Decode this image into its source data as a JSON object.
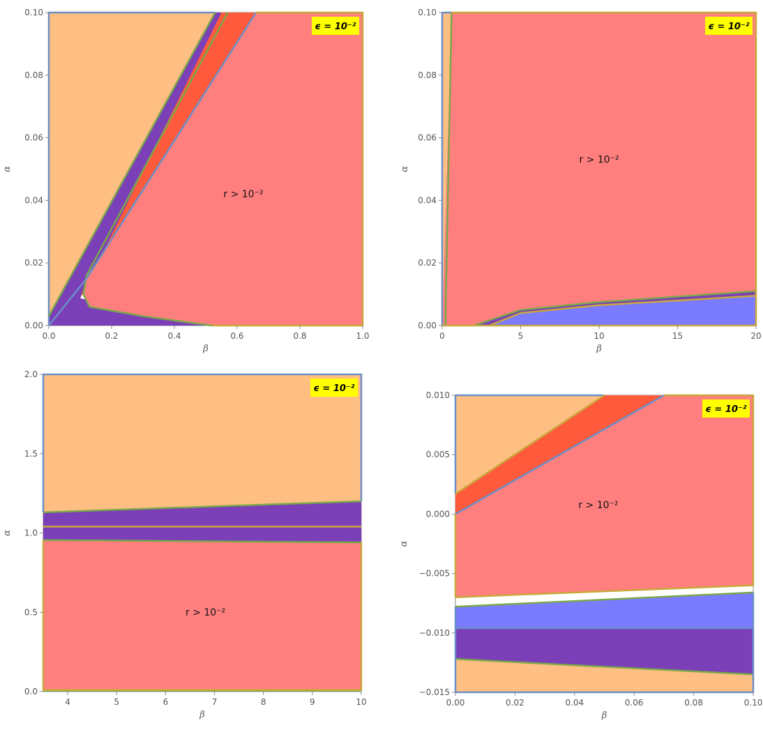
{
  "chart_data": [
    {
      "type": "area",
      "panel": "top-left",
      "xlabel": "β",
      "ylabel": "α",
      "xlim": [
        0,
        1.0
      ],
      "ylim": [
        0,
        0.1
      ],
      "x_ticks": [
        "0.0",
        "0.2",
        "0.4",
        "0.6",
        "0.8",
        "1.0"
      ],
      "y_ticks": [
        "0.00",
        "0.02",
        "0.04",
        "0.06",
        "0.08",
        "0.10"
      ],
      "annotation": "r > 10⁻²",
      "badge": "ϵ = 10⁻²",
      "colors": {
        "orange": "#FFBE82",
        "red": "#FF7F7F",
        "darkred": "#FF5A3C",
        "purple": "#7B3FB8",
        "blue": "#7B7BFF"
      },
      "regions": [
        {
          "color": "orange",
          "points": [
            [
              0,
              0.1
            ],
            [
              0.53,
              0.1
            ],
            [
              0,
              0.003
            ]
          ]
        },
        {
          "color": "purple",
          "points": [
            [
              0,
              0.003
            ],
            [
              0.53,
              0.1
            ],
            [
              0.57,
              0.1
            ],
            [
              0.1,
              0.0087
            ],
            [
              0.52,
              0
            ],
            [
              0,
              0
            ]
          ]
        },
        {
          "color": "darkred",
          "points": [
            [
              0.55,
              0.1
            ],
            [
              0.66,
              0.1
            ],
            [
              0.111,
              0.012
            ],
            [
              0.1,
              0.0087
            ]
          ]
        },
        {
          "color": "red",
          "points": [
            [
              0.66,
              0.1
            ],
            [
              1.0,
              0.1
            ],
            [
              1.0,
              0
            ],
            [
              0.52,
              0
            ],
            [
              0.25,
              0.004
            ],
            [
              0.13,
              0.006
            ],
            [
              0.11,
              0.01
            ],
            [
              0.12,
              0.015
            ]
          ]
        }
      ],
      "boundaries": [
        {
          "color": "#6B8FC7",
          "points": [
            [
              0,
              0
            ],
            [
              0,
              0.1
            ],
            [
              0.53,
              0.1
            ]
          ]
        },
        {
          "color": "#7AA84A",
          "points": [
            [
              0,
              0.003
            ],
            [
              0.53,
              0.1
            ]
          ]
        },
        {
          "color": "#7AA84A",
          "points": [
            [
              0.57,
              0.1
            ],
            [
              0.12,
              0.016
            ],
            [
              0.11,
              0.01
            ],
            [
              0.13,
              0.006
            ],
            [
              0.3,
              0.003
            ],
            [
              0.52,
              0
            ]
          ]
        },
        {
          "color": "#6B8FC7",
          "points": [
            [
              0.66,
              0.1
            ],
            [
              0.12,
              0.015
            ],
            [
              0,
              0
            ]
          ]
        },
        {
          "color": "#C9A83A",
          "points": [
            [
              0.66,
              0.1
            ],
            [
              1.0,
              0.1
            ],
            [
              1.0,
              0
            ],
            [
              0.52,
              0
            ]
          ]
        }
      ]
    },
    {
      "type": "area",
      "panel": "top-right",
      "xlabel": "β",
      "ylabel": "α",
      "xlim": [
        0,
        20
      ],
      "ylim": [
        0,
        0.1
      ],
      "x_ticks": [
        "0",
        "5",
        "10",
        "15",
        "20"
      ],
      "y_ticks": [
        "0.00",
        "0.02",
        "0.04",
        "0.06",
        "0.08",
        "0.10"
      ],
      "annotation": "r > 10⁻²",
      "badge": "ϵ = 10⁻²",
      "colors": {
        "orange": "#FFBE82",
        "red": "#FF7F7F",
        "purple": "#7B3FB8",
        "blue": "#7B7BFF"
      },
      "regions": [
        {
          "color": "orange",
          "points": [
            [
              0,
              0
            ],
            [
              0,
              0.1
            ],
            [
              0.6,
              0.1
            ]
          ]
        },
        {
          "color": "red",
          "points": [
            [
              0.6,
              0.1
            ],
            [
              20,
              0.1
            ],
            [
              20,
              0.011
            ],
            [
              10,
              0.0075
            ],
            [
              5,
              0.005
            ],
            [
              2,
              0
            ],
            [
              0,
              0
            ]
          ]
        },
        {
          "color": "purple",
          "points": [
            [
              2,
              0
            ],
            [
              5,
              0.005
            ],
            [
              10,
              0.0075
            ],
            [
              20,
              0.011
            ],
            [
              20,
              0.0095
            ],
            [
              10,
              0.0065
            ],
            [
              5,
              0.004
            ],
            [
              3,
              0
            ]
          ]
        },
        {
          "color": "blue",
          "points": [
            [
              3,
              0
            ],
            [
              5,
              0.004
            ],
            [
              10,
              0.0065
            ],
            [
              20,
              0.0095
            ],
            [
              20,
              0
            ]
          ]
        }
      ],
      "boundaries": [
        {
          "color": "#6B8FC7",
          "points": [
            [
              0,
              0
            ],
            [
              0,
              0.1
            ],
            [
              0.6,
              0.1
            ]
          ]
        },
        {
          "color": "#7AA84A",
          "points": [
            [
              0.6,
              0.1
            ],
            [
              0.2,
              0
            ]
          ]
        },
        {
          "color": "#7AA84A",
          "points": [
            [
              2,
              0
            ],
            [
              5,
              0.005
            ],
            [
              10,
              0.0075
            ],
            [
              20,
              0.011
            ]
          ]
        },
        {
          "color": "#C9A83A",
          "points": [
            [
              3,
              0
            ],
            [
              5,
              0.004
            ],
            [
              10,
              0.0065
            ],
            [
              20,
              0.0095
            ]
          ]
        },
        {
          "color": "#C9A83A",
          "points": [
            [
              0.6,
              0.1
            ],
            [
              20,
              0.1
            ],
            [
              20,
              0
            ],
            [
              0,
              0
            ]
          ]
        }
      ]
    },
    {
      "type": "area",
      "panel": "bottom-left",
      "xlabel": "β",
      "ylabel": "α",
      "xlim": [
        3.5,
        10
      ],
      "ylim": [
        0,
        2.0
      ],
      "x_ticks": [
        "4",
        "5",
        "6",
        "7",
        "8",
        "9",
        "10"
      ],
      "y_ticks": [
        "0.0",
        "0.5",
        "1.0",
        "1.5",
        "2.0"
      ],
      "annotation": "r > 10⁻²",
      "badge": "ϵ = 10⁻²",
      "colors": {
        "orange": "#FFBE82",
        "red": "#FF7F7F",
        "purple": "#7B3FB8",
        "blue": "#7B7BFF"
      },
      "regions": [
        {
          "color": "orange",
          "points": [
            [
              3.5,
              2.0
            ],
            [
              10,
              2.0
            ],
            [
              10,
              1.2
            ],
            [
              3.5,
              1.13
            ]
          ]
        },
        {
          "color": "purple",
          "points": [
            [
              3.5,
              1.13
            ],
            [
              10,
              1.2
            ],
            [
              10,
              0.94
            ],
            [
              3.5,
              0.955
            ]
          ]
        },
        {
          "color": "red",
          "points": [
            [
              3.5,
              0.955
            ],
            [
              10,
              0.94
            ],
            [
              10,
              0.01
            ],
            [
              3.5,
              0.01
            ]
          ]
        }
      ],
      "boundaries": [
        {
          "color": "#6B8FC7",
          "points": [
            [
              3.5,
              1.13
            ],
            [
              3.5,
              2.0
            ],
            [
              10,
              2.0
            ],
            [
              10,
              1.2
            ]
          ]
        },
        {
          "color": "#7AA84A",
          "points": [
            [
              3.5,
              1.13
            ],
            [
              10,
              1.2
            ]
          ]
        },
        {
          "color": "#C9A83A",
          "points": [
            [
              3.5,
              1.04
            ],
            [
              10,
              1.04
            ]
          ]
        },
        {
          "color": "#7AA84A",
          "points": [
            [
              3.5,
              0.955
            ],
            [
              10,
              0.94
            ]
          ]
        },
        {
          "color": "#7AA84A",
          "points": [
            [
              3.5,
              0.005
            ],
            [
              10,
              0.005
            ]
          ]
        },
        {
          "color": "#C9A83A",
          "points": [
            [
              3.5,
              0.955
            ],
            [
              3.5,
              0.01
            ],
            [
              10,
              0.01
            ],
            [
              10,
              0.94
            ]
          ]
        }
      ]
    },
    {
      "type": "area",
      "panel": "bottom-right",
      "xlabel": "β",
      "ylabel": "α",
      "xlim": [
        0,
        0.1
      ],
      "ylim": [
        -0.015,
        0.01
      ],
      "x_ticks": [
        "0.00",
        "0.02",
        "0.04",
        "0.06",
        "0.08",
        "0.10"
      ],
      "y_ticks": [
        "−0.015",
        "−0.010",
        "−0.005",
        "0.000",
        "0.005",
        "0.010"
      ],
      "annotation": "r > 10⁻²",
      "badge": "ϵ = 10⁻²",
      "colors": {
        "orange": "#FFBE82",
        "red": "#FF7F7F",
        "darkred": "#FF5A3C",
        "purple": "#7B3FB8",
        "blue": "#7B7BFF"
      },
      "regions": [
        {
          "color": "orange",
          "points": [
            [
              0,
              0.01
            ],
            [
              0.05,
              0.01
            ],
            [
              0,
              0.0017
            ]
          ]
        },
        {
          "color": "darkred",
          "points": [
            [
              0,
              0.0017
            ],
            [
              0.05,
              0.01
            ],
            [
              0.07,
              0.01
            ],
            [
              0,
              0
            ]
          ]
        },
        {
          "color": "red",
          "points": [
            [
              0,
              0
            ],
            [
              0.07,
              0.01
            ],
            [
              0.1,
              0.01
            ],
            [
              0.1,
              -0.006
            ],
            [
              0,
              -0.007
            ]
          ]
        },
        {
          "color": "blue",
          "points": [
            [
              0,
              -0.0078
            ],
            [
              0.1,
              -0.0066
            ],
            [
              0.1,
              -0.0096
            ],
            [
              0,
              -0.0096
            ]
          ]
        },
        {
          "color": "purple",
          "points": [
            [
              0,
              -0.0096
            ],
            [
              0.1,
              -0.0096
            ],
            [
              0.1,
              -0.0135
            ],
            [
              0,
              -0.0122
            ]
          ]
        },
        {
          "color": "orange",
          "points": [
            [
              0,
              -0.0122
            ],
            [
              0.1,
              -0.0135
            ],
            [
              0.1,
              -0.015
            ],
            [
              0,
              -0.015
            ]
          ]
        }
      ],
      "boundaries": [
        {
          "color": "#6B8FC7",
          "points": [
            [
              0,
              0.0017
            ],
            [
              0,
              0.01
            ],
            [
              0.05,
              0.01
            ]
          ]
        },
        {
          "color": "#C9A83A",
          "points": [
            [
              0,
              0.0017
            ],
            [
              0.05,
              0.01
            ]
          ]
        },
        {
          "color": "#6B8FC7",
          "points": [
            [
              0,
              0
            ],
            [
              0.07,
              0.01
            ]
          ]
        },
        {
          "color": "#C9A83A",
          "points": [
            [
              0.07,
              0.01
            ],
            [
              0.1,
              0.01
            ],
            [
              0.1,
              -0.006
            ],
            [
              0,
              -0.007
            ],
            [
              0,
              0
            ]
          ]
        },
        {
          "color": "#7AA84A",
          "points": [
            [
              0,
              -0.0078
            ],
            [
              0.1,
              -0.0066
            ]
          ]
        },
        {
          "color": "#6B8FC7",
          "points": [
            [
              0,
              -0.0096
            ],
            [
              0.1,
              -0.0096
            ]
          ]
        },
        {
          "color": "#7AA84A",
          "points": [
            [
              0,
              -0.0122
            ],
            [
              0.1,
              -0.0135
            ]
          ]
        },
        {
          "color": "#6B8FC7",
          "points": [
            [
              0,
              -0.0078
            ],
            [
              0,
              -0.015
            ],
            [
              0.1,
              -0.015
            ],
            [
              0.1,
              -0.0066
            ]
          ]
        }
      ]
    }
  ]
}
